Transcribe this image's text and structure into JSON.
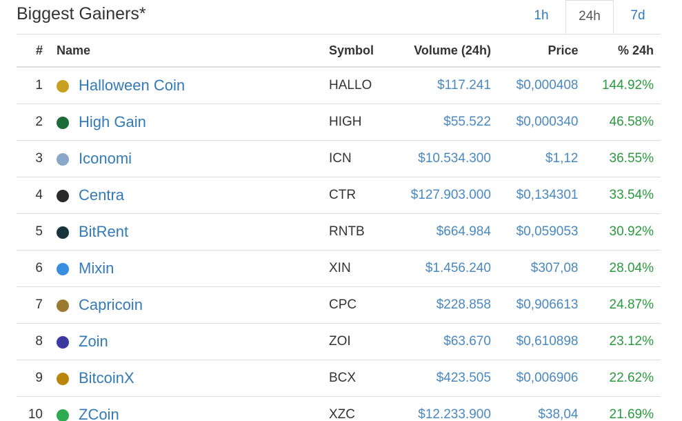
{
  "header": {
    "title": "Biggest Gainers*",
    "tabs": [
      "1h",
      "24h",
      "7d"
    ],
    "active_tab": 1
  },
  "table": {
    "columns": [
      "#",
      "Name",
      "Symbol",
      "Volume (24h)",
      "Price",
      "% 24h"
    ],
    "rows": [
      [
        1,
        "Halloween Coin",
        "HALLO",
        "$117.241",
        "$0,000408",
        "144.92%"
      ],
      [
        2,
        "High Gain",
        "HIGH",
        "$55.522",
        "$0,000340",
        "46.58%"
      ],
      [
        3,
        "Iconomi",
        "ICN",
        "$10.534.300",
        "$1,12",
        "36.55%"
      ],
      [
        4,
        "Centra",
        "CTR",
        "$127.903.000",
        "$0,134301",
        "33.54%"
      ],
      [
        5,
        "BitRent",
        "RNTB",
        "$664.984",
        "$0,059053",
        "30.92%"
      ],
      [
        6,
        "Mixin",
        "XIN",
        "$1.456.240",
        "$307,08",
        "28.04%"
      ],
      [
        7,
        "Capricoin",
        "CPC",
        "$228.858",
        "$0,906613",
        "24.87%"
      ],
      [
        8,
        "Zoin",
        "ZOI",
        "$63.670",
        "$0,610898",
        "23.12%"
      ],
      [
        9,
        "BitcoinX",
        "BCX",
        "$423.505",
        "$0,006906",
        "22.62%"
      ],
      [
        10,
        "ZCoin",
        "XZC",
        "$12.233.900",
        "$38,04",
        "21.69%"
      ]
    ]
  }
}
